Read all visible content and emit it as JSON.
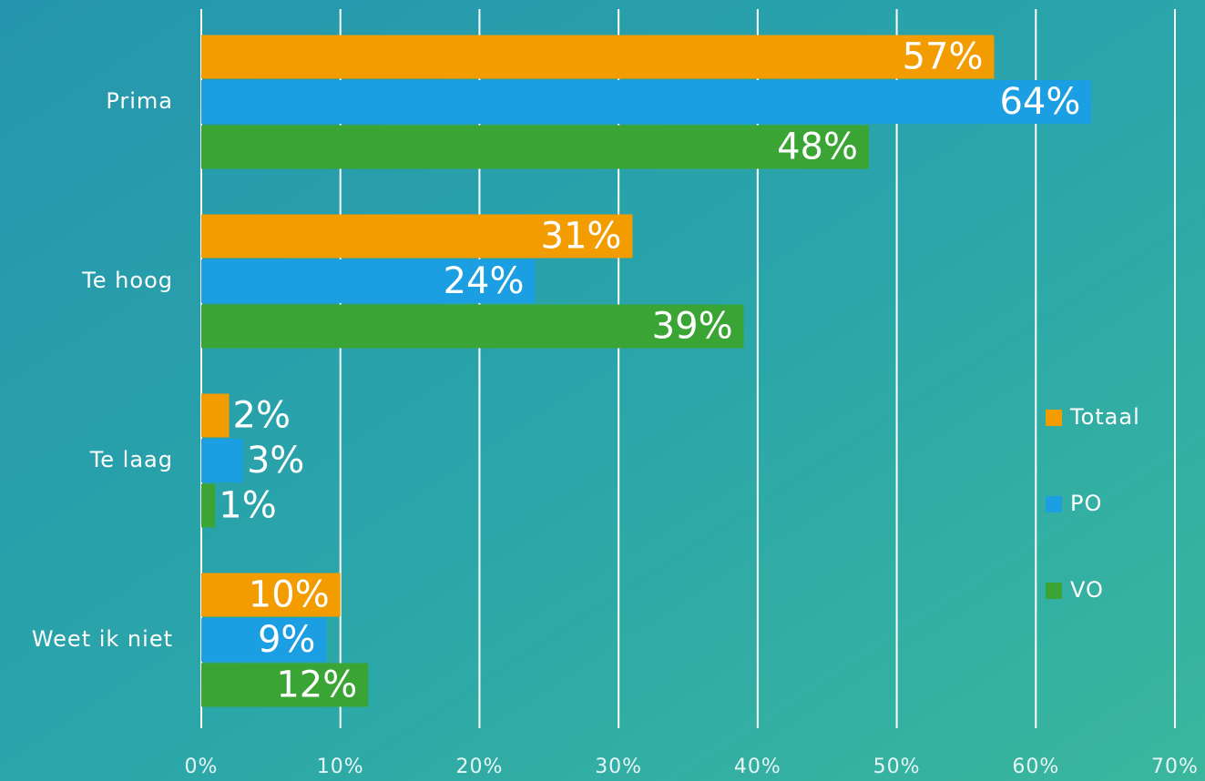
{
  "chart_data": {
    "type": "bar",
    "orientation": "horizontal",
    "categories": [
      "Prima",
      "Te hoog",
      "Te laag",
      "Weet ik niet"
    ],
    "series": [
      {
        "name": "Totaal",
        "color": "#f39c00",
        "values": [
          57,
          31,
          2,
          10
        ],
        "value_labels": [
          "57%",
          "31%",
          "2%",
          "10%"
        ]
      },
      {
        "name": "PO",
        "color": "#1c9fe2",
        "values": [
          64,
          24,
          3,
          9
        ],
        "value_labels": [
          "64%",
          "24%",
          "3%",
          "9%"
        ]
      },
      {
        "name": "VO",
        "color": "#3aa534",
        "values": [
          48,
          39,
          1,
          12
        ],
        "value_labels": [
          "48%",
          "39%",
          "1%",
          "12%"
        ]
      }
    ],
    "xlim": [
      0,
      70
    ],
    "xticks": [
      {
        "value": 0,
        "label": "0%"
      },
      {
        "value": 10,
        "label": "10%"
      },
      {
        "value": 20,
        "label": "20%"
      },
      {
        "value": 30,
        "label": "30%"
      },
      {
        "value": 40,
        "label": "40%"
      },
      {
        "value": 50,
        "label": "50%"
      },
      {
        "value": 60,
        "label": "60%"
      },
      {
        "value": 70,
        "label": "70%"
      }
    ],
    "grid": true,
    "legend": "right"
  }
}
